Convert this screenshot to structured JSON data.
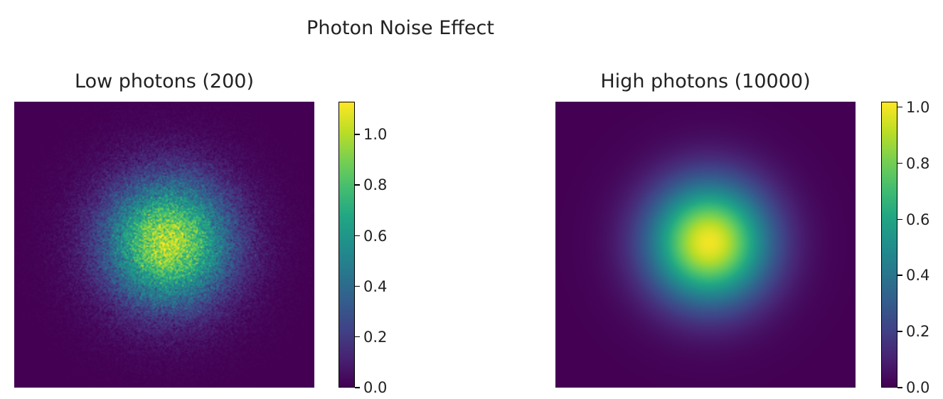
{
  "figure": {
    "suptitle": "Photon Noise Effect"
  },
  "colormap": "viridis",
  "chart_data": [
    {
      "type": "heatmap",
      "title": "Low photons (200)",
      "description_photons": 200,
      "pattern": "gaussian spot with Poisson photon noise",
      "colorbar": {
        "vmin": 0.0,
        "vmax": 1.13,
        "ticks": [
          0.0,
          0.2,
          0.4,
          0.6,
          0.8,
          1.0
        ],
        "tick_labels": [
          "0.0",
          "0.2",
          "0.4",
          "0.6",
          "0.8",
          "1.0"
        ]
      },
      "peak_value": 1.0,
      "noise": "high",
      "axes_visible": false
    },
    {
      "type": "heatmap",
      "title": "High photons (10000)",
      "description_photons": 10000,
      "pattern": "gaussian spot, nearly noise-free",
      "colorbar": {
        "vmin": 0.0,
        "vmax": 1.02,
        "ticks": [
          0.0,
          0.2,
          0.4,
          0.6,
          0.8,
          1.0
        ],
        "tick_labels": [
          "0.0",
          "0.2",
          "0.4",
          "0.6",
          "0.8",
          "1.0"
        ]
      },
      "peak_value": 1.0,
      "noise": "low",
      "axes_visible": false
    }
  ]
}
